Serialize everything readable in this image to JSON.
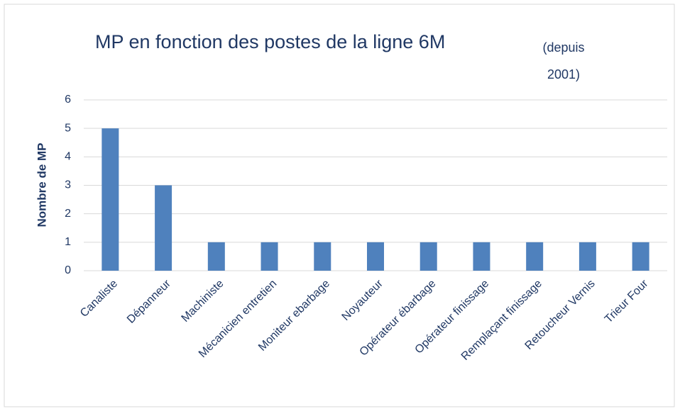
{
  "chart_data": {
    "type": "bar",
    "title": "MP en fonction des postes de la ligne 6M",
    "subtitle": "(depuis 2001)",
    "y_label": "Nombre de MP",
    "categories": [
      "Canaliste",
      "Dépanneur",
      "Machiniste",
      "Mécanicien entretien",
      "Moniteur ebarbage",
      "Noyauteur",
      "Opérateur ébarbage",
      "Opérateur finissage",
      "Remplaçant finissage",
      "Retoucheur Vernis",
      "Trieur Four"
    ],
    "values": [
      5,
      3,
      1,
      1,
      1,
      1,
      1,
      1,
      1,
      1,
      1
    ],
    "color": "#4f81bd",
    "ylim": [
      0,
      6
    ],
    "yticks": [
      0,
      1,
      2,
      3,
      4,
      5,
      6
    ],
    "grid": true
  }
}
